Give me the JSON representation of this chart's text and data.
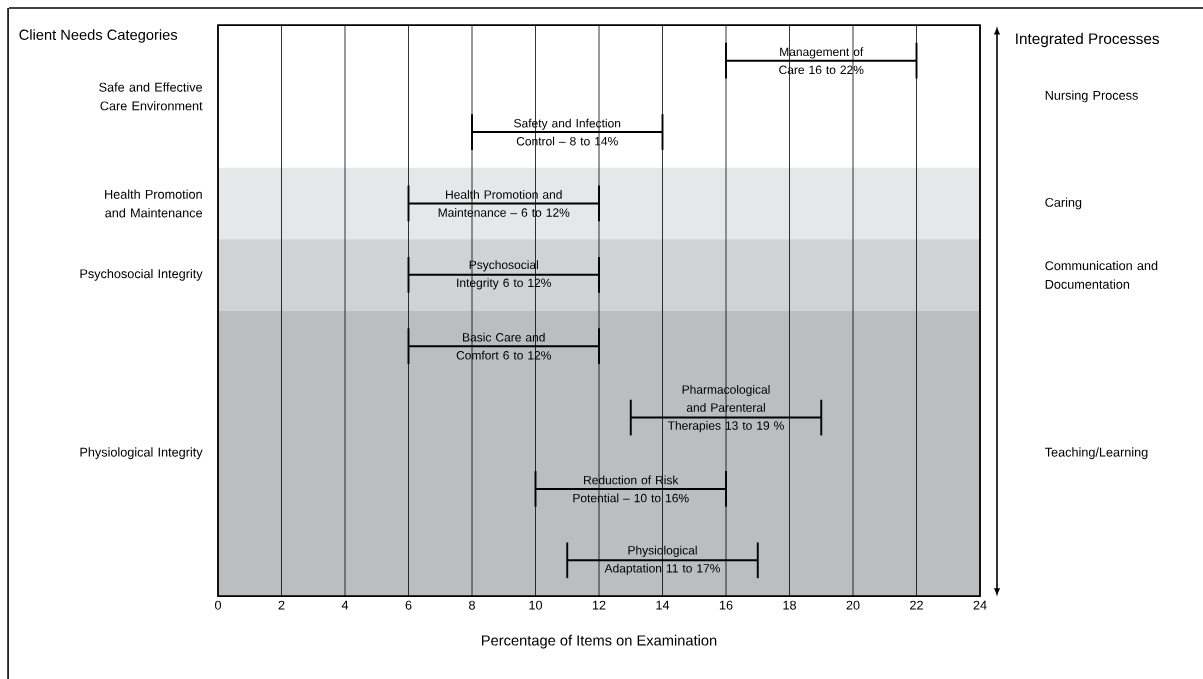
{
  "chart_data": {
    "type": "bar",
    "orientation": "horizontal",
    "categories": [
      "Management of Care 16 to 22%",
      "Safety and Infection Control – 8 to 14%",
      "Health Promotion and Maintenance – 6 to 12%",
      "Psychosocial Integrity 6 to 12%",
      "Basic Care and Comfort 6 to 12%",
      "Pharmacological and Parenteral Therapies 13 to 19 %",
      "Reduction of Risk Potential – 10 to 16%",
      "Physiological Adaptation 11 to 17%"
    ],
    "base": [
      16,
      8,
      6,
      6,
      6,
      13,
      10,
      11
    ],
    "values": [
      6,
      6,
      6,
      6,
      6,
      6,
      6,
      6
    ],
    "color": "#000000",
    "xlabel": "Percentage of Items on Examination",
    "xlim": [
      0,
      24
    ],
    "xticks": [
      0,
      2,
      4,
      6,
      8,
      10,
      12,
      14,
      16,
      18,
      20,
      22,
      24
    ],
    "grid": "x",
    "tick_labels": "x",
    "bands": [
      {
        "axis": "y",
        "from": "Health Promotion and Maintenance – 6 to 12%",
        "to": "Health Promotion and Maintenance – 6 to 12%",
        "label": "Health Promotion and Maintenance",
        "color": "#e6e7e8"
      },
      {
        "axis": "y",
        "from": "Psychosocial Integrity 6 to 12%",
        "to": "Psychosocial Integrity 6 to 12%",
        "label": "Psychosocial Integrity",
        "color": "#d1d2d4"
      },
      {
        "axis": "y",
        "from": "Basic Care and Comfort 6 to 12%",
        "to": "Physiological Adaptation 11 to 17%",
        "label": "Physiological Integrity",
        "color": "#bcbdc0"
      }
    ],
    "annotations": [
      "Client Needs Categories",
      "Integrated Processes",
      "Safe and Effective Care Environment",
      "Nursing Process",
      "Caring",
      "Communication and Documentation",
      "Teaching/Learning"
    ]
  }
}
